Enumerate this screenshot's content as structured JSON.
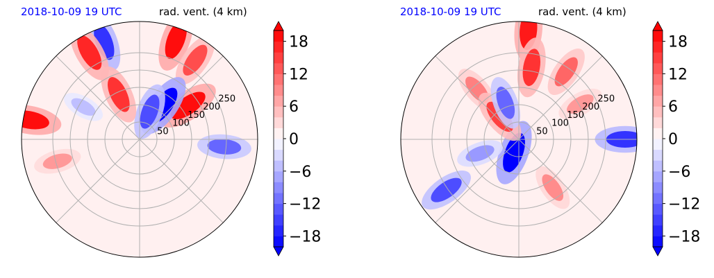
{
  "chart_data": [
    {
      "type": "heatmap",
      "projection": "polar",
      "title_left": "2018-10-09 19 UTC",
      "title_right": "rad. vent. (4 km)",
      "radial_ticks": [
        "50",
        "100",
        "150",
        "200",
        "250"
      ],
      "radial_values": [
        50,
        100,
        150,
        200,
        250
      ],
      "rmax": 340,
      "angular_spokes_deg": [
        0,
        45,
        90,
        135,
        180,
        225,
        270,
        315
      ],
      "grid": true,
      "colorbar": {
        "cmap": "bwr",
        "vmin": -20,
        "vmax": 20,
        "step": 2,
        "extend": "both",
        "ticks": [
          18,
          12,
          6,
          0,
          -6,
          -12,
          -18
        ],
        "tick_labels": [
          "18",
          "12",
          "6",
          "0",
          "−6",
          "−12",
          "−18"
        ]
      },
      "features": [
        {
          "az": 20,
          "r": 0.9,
          "value": 19
        },
        {
          "az": 35,
          "r": 0.82,
          "value": 14
        },
        {
          "az": 340,
          "r": 0.88,
          "value": -16
        },
        {
          "az": 330,
          "r": 0.85,
          "value": 17
        },
        {
          "az": 55,
          "r": 0.5,
          "value": 19
        },
        {
          "az": 35,
          "r": 0.35,
          "value": -20
        },
        {
          "az": 20,
          "r": 0.25,
          "value": -14
        },
        {
          "az": 335,
          "r": 0.42,
          "value": 16
        },
        {
          "az": 280,
          "r": 0.95,
          "value": 19
        },
        {
          "az": 255,
          "r": 0.72,
          "value": 8
        },
        {
          "az": 95,
          "r": 0.72,
          "value": -12
        },
        {
          "az": 300,
          "r": 0.55,
          "value": -5
        }
      ]
    },
    {
      "type": "heatmap",
      "projection": "polar",
      "title_left": "2018-10-09 19 UTC",
      "title_right": "rad. vent. (4 km)",
      "radial_ticks": [
        "50",
        "100",
        "150",
        "200",
        "250"
      ],
      "radial_values": [
        50,
        100,
        150,
        200,
        250
      ],
      "rmax": 340,
      "angular_spokes_deg": [
        0,
        45,
        90,
        135,
        180,
        225,
        270,
        315
      ],
      "grid": true,
      "colorbar": {
        "cmap": "bwr",
        "vmin": -20,
        "vmax": 20,
        "step": 2,
        "extend": "both",
        "ticks": [
          18,
          12,
          6,
          0,
          -6,
          -12,
          -18
        ],
        "tick_labels": [
          "18",
          "12",
          "6",
          "0",
          "−6",
          "−12",
          "−18"
        ]
      },
      "features": [
        {
          "az": 5,
          "r": 0.93,
          "value": 18
        },
        {
          "az": 10,
          "r": 0.62,
          "value": 16
        },
        {
          "az": 35,
          "r": 0.7,
          "value": 12
        },
        {
          "az": 60,
          "r": 0.6,
          "value": 8
        },
        {
          "az": 320,
          "r": 0.55,
          "value": 10
        },
        {
          "az": 200,
          "r": 0.12,
          "value": -20
        },
        {
          "az": 320,
          "r": 0.25,
          "value": 15
        },
        {
          "az": 340,
          "r": 0.33,
          "value": -12
        },
        {
          "az": 250,
          "r": 0.35,
          "value": -8
        },
        {
          "az": 145,
          "r": 0.5,
          "value": 9
        },
        {
          "az": 90,
          "r": 0.9,
          "value": -16
        },
        {
          "az": 235,
          "r": 0.75,
          "value": -14
        }
      ]
    }
  ]
}
